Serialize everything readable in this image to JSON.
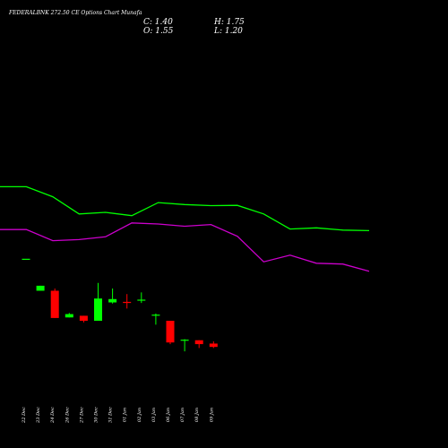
{
  "chart_data": {
    "type": "candlestick",
    "title": "FEDERALBNK 272.50 CE Options Chart Munafa",
    "ohlc": {
      "open_label": "O: 1.55",
      "high_label": "H: 1.75",
      "low_label": "L: 1.20",
      "close_label": "C: 1.40"
    },
    "price_range": [
      0.6,
      6.4
    ],
    "colors": {
      "background": "#000000",
      "bull": "#00ff00",
      "bear": "#ff0000",
      "line_upper": "#00ff00",
      "line_lower": "#cc00cc",
      "text": "#ffffff"
    },
    "candles": [
      {
        "date": "22 Dec",
        "open": 5.15,
        "high": 5.15,
        "low": 5.15,
        "close": 5.15
      },
      {
        "date": "23 Dec",
        "open": 4.0,
        "high": 4.18,
        "low": 4.0,
        "close": 4.18
      },
      {
        "date": "24 Dec",
        "open": 4.0,
        "high": 4.08,
        "low": 3.02,
        "close": 3.02
      },
      {
        "date": "26 Dec",
        "open": 3.04,
        "high": 3.2,
        "low": 3.04,
        "close": 3.16
      },
      {
        "date": "27 Dec",
        "open": 3.1,
        "high": 3.1,
        "low": 2.86,
        "close": 2.92
      },
      {
        "date": "30 Dec",
        "open": 2.92,
        "high": 4.28,
        "low": 2.92,
        "close": 3.72
      },
      {
        "date": "31 Dec",
        "open": 3.58,
        "high": 4.08,
        "low": 3.54,
        "close": 3.7
      },
      {
        "date": "01 Jan",
        "open": 3.6,
        "high": 3.88,
        "low": 3.36,
        "close": 3.56
      },
      {
        "date": "02 Jan",
        "open": 3.66,
        "high": 3.94,
        "low": 3.56,
        "close": 3.68
      },
      {
        "date": "03 Jan",
        "open": 3.12,
        "high": 3.18,
        "low": 2.78,
        "close": 3.14
      },
      {
        "date": "06 Jan",
        "open": 2.92,
        "high": 2.92,
        "low": 2.08,
        "close": 2.14
      },
      {
        "date": "07 Jan",
        "open": 2.24,
        "high": 2.26,
        "low": 1.82,
        "close": 2.24
      },
      {
        "date": "08 Jan",
        "open": 2.22,
        "high": 2.22,
        "low": 1.94,
        "close": 2.08
      },
      {
        "date": "09 Jan",
        "open": 2.1,
        "high": 2.18,
        "low": 1.94,
        "close": 1.98
      }
    ],
    "upper_line": [
      7.74,
      7.74,
      7.38,
      6.76,
      6.82,
      6.7,
      7.17,
      7.1,
      7.06,
      7.07,
      6.76,
      6.22,
      6.26,
      6.18,
      6.16
    ],
    "lower_line": [
      6.2,
      6.2,
      5.8,
      5.84,
      5.94,
      6.44,
      6.4,
      6.32,
      6.38,
      5.96,
      5.04,
      5.28,
      4.99,
      4.96,
      4.7
    ]
  }
}
